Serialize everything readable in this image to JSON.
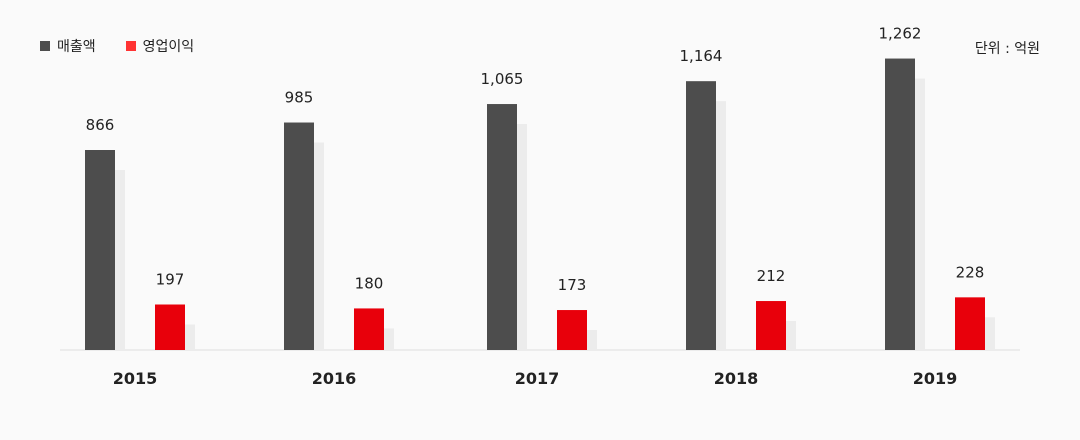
{
  "legend": {
    "revenue_label": "매출액",
    "profit_label": "영업이익"
  },
  "unit_label": "단위 : 억원",
  "colors": {
    "revenue": "#4d4d4d",
    "profit": "#e8000b",
    "shadow": "#ececec",
    "baseline": "#dddddd"
  },
  "chart_data": {
    "type": "bar",
    "categories": [
      "2015",
      "2016",
      "2017",
      "2018",
      "2019"
    ],
    "series": [
      {
        "name": "매출액",
        "values": [
          866,
          985,
          1065,
          1164,
          1262
        ],
        "labels": [
          "866",
          "985",
          "1,065",
          "1,164",
          "1,262"
        ]
      },
      {
        "name": "영업이익",
        "values": [
          197,
          180,
          173,
          212,
          228
        ],
        "labels": [
          "197",
          "180",
          "173",
          "212",
          "228"
        ]
      }
    ],
    "unit": "단위 : 억원",
    "legend_position": "top-left",
    "grid": false
  }
}
